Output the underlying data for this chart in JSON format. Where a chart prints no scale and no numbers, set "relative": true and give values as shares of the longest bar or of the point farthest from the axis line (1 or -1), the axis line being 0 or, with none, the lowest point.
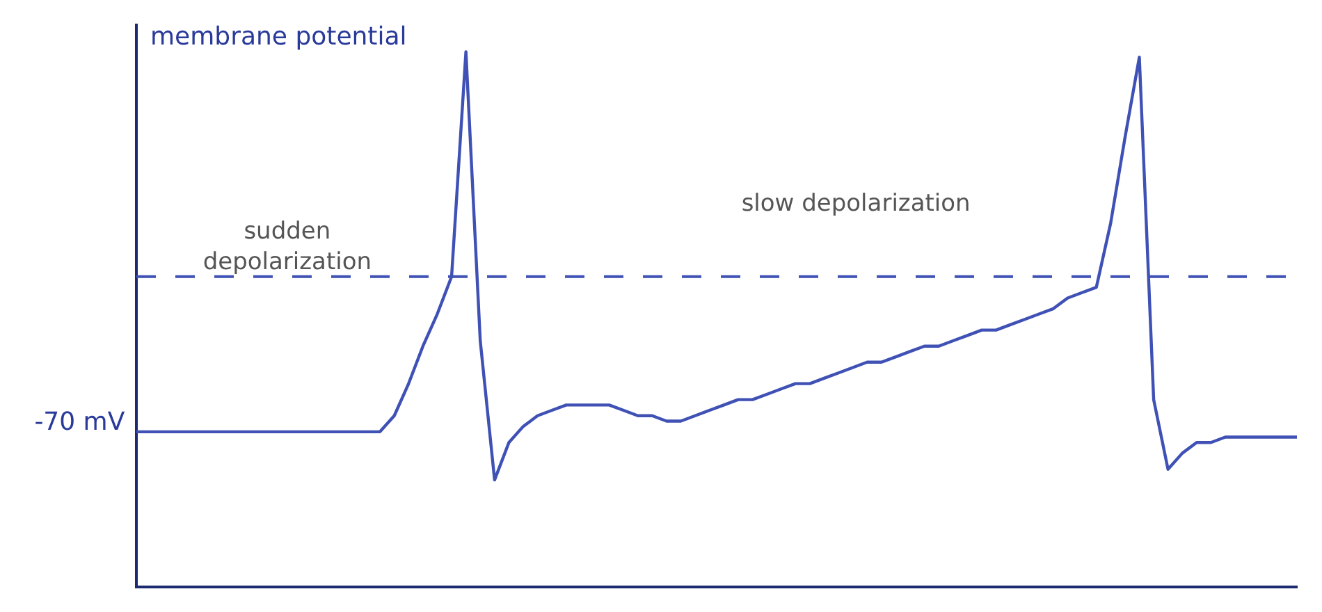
{
  "chart_data": {
    "type": "line",
    "relative": true,
    "ylabel": "membrane potential",
    "grid": false,
    "legend": false,
    "marker": "none",
    "line_style": "solid",
    "categories": [
      null,
      null,
      null,
      null,
      null,
      null,
      null,
      null,
      null,
      null,
      null,
      null,
      null,
      null,
      null,
      null,
      null,
      null,
      null,
      null,
      null,
      null,
      null,
      null,
      null,
      null,
      null,
      null,
      null,
      null,
      null,
      null,
      null,
      null,
      null,
      null,
      null,
      null,
      null,
      null,
      null,
      null,
      null,
      null,
      null,
      null,
      null,
      null,
      null,
      null,
      null,
      null,
      null,
      null,
      null,
      null,
      null,
      null,
      null,
      null,
      null,
      null,
      null,
      null,
      null,
      null,
      null,
      null,
      null,
      null,
      null,
      null,
      null,
      null,
      null,
      null,
      null,
      null,
      null,
      null,
      null,
      null
    ],
    "series": [
      {
        "color": "#3f51b5",
        "values": [
          0.29,
          0.29,
          0.29,
          0.29,
          0.29,
          0.29,
          0.29,
          0.29,
          0.29,
          0.29,
          0.29,
          0.29,
          0.29,
          0.29,
          0.29,
          0.29,
          0.29,
          0.29,
          0.32,
          0.38,
          0.45,
          0.51,
          0.58,
          1,
          0.46,
          0.2,
          0.27,
          0.3,
          0.32,
          0.33,
          0.34,
          0.34,
          0.34,
          0.34,
          0.33,
          0.32,
          0.32,
          0.31,
          0.31,
          0.32,
          0.33,
          0.34,
          0.35,
          0.35,
          0.36,
          0.37,
          0.38,
          0.38,
          0.39,
          0.4,
          0.41,
          0.42,
          0.42,
          0.43,
          0.44,
          0.45,
          0.45,
          0.46,
          0.47,
          0.48,
          0.48,
          0.49,
          0.5,
          0.51,
          0.52,
          0.54,
          0.55,
          0.56,
          0.68,
          0.84,
          0.99,
          0.35,
          0.22,
          0.25,
          0.27,
          0.27,
          0.28,
          0.28,
          0.28,
          0.28,
          0.28,
          0.28
        ]
      }
    ],
    "ref_lines": [
      {
        "axis": "y",
        "value": 0.58,
        "line_style": "dashed",
        "color": "#3f51b5"
      }
    ],
    "annotations": [
      "sudden depolarization",
      "slow depolarization",
      "-70 mV"
    ]
  }
}
